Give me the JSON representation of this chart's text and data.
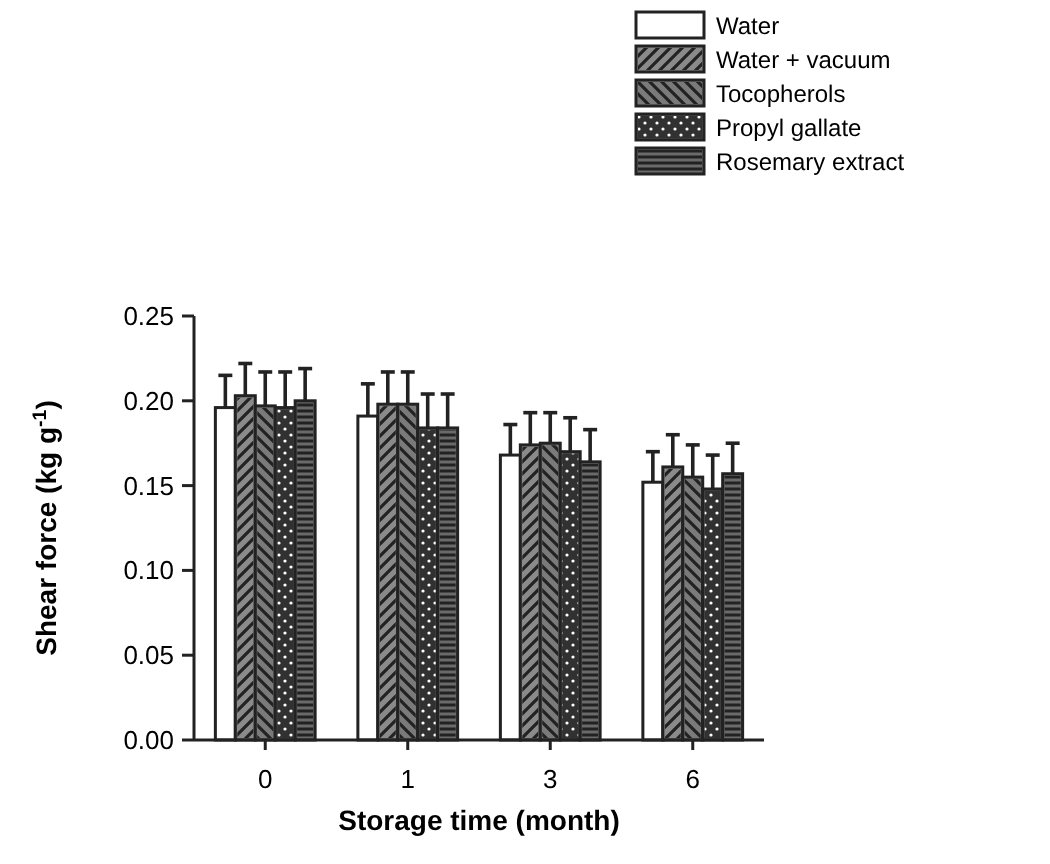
{
  "chart_data": {
    "type": "bar",
    "xlabel": "Storage time (month)",
    "ylabel": "Shear force (kg g$^{-1}$)",
    "categories": [
      "0",
      "1",
      "3",
      "6"
    ],
    "series": [
      {
        "name": "Water",
        "color": "#ffffff",
        "values": [
          0.196,
          0.191,
          0.168,
          0.152
        ],
        "errors": [
          0.019,
          0.019,
          0.018,
          0.018
        ]
      },
      {
        "name": "Water + vacuum",
        "color": "#8a8a8a",
        "values": [
          0.203,
          0.198,
          0.174,
          0.161
        ],
        "errors": [
          0.019,
          0.019,
          0.019,
          0.019
        ]
      },
      {
        "name": "Tocopherols",
        "color": "#7a7a7a",
        "values": [
          0.197,
          0.198,
          0.175,
          0.155
        ],
        "errors": [
          0.02,
          0.019,
          0.018,
          0.019
        ]
      },
      {
        "name": "Propyl gallate",
        "color": "#555555",
        "values": [
          0.196,
          0.184,
          0.17,
          0.148
        ],
        "errors": [
          0.021,
          0.02,
          0.02,
          0.02
        ]
      },
      {
        "name": "Rosemary extract",
        "color": "#6a6a6a",
        "values": [
          0.2,
          0.184,
          0.164,
          0.157
        ],
        "errors": [
          0.019,
          0.02,
          0.019,
          0.018
        ]
      }
    ],
    "ylim": [
      0,
      0.25
    ],
    "yticks": [
      {
        "value": 0,
        "label": "0.00"
      },
      {
        "value": 0.05,
        "label": "0.05"
      },
      {
        "value": 0.1,
        "label": "0.10"
      },
      {
        "value": 0.15,
        "label": "0.15"
      },
      {
        "value": 0.2,
        "label": "0.20"
      },
      {
        "value": 0.25,
        "label": "0.25"
      }
    ],
    "legend": "top right",
    "grid": false
  }
}
